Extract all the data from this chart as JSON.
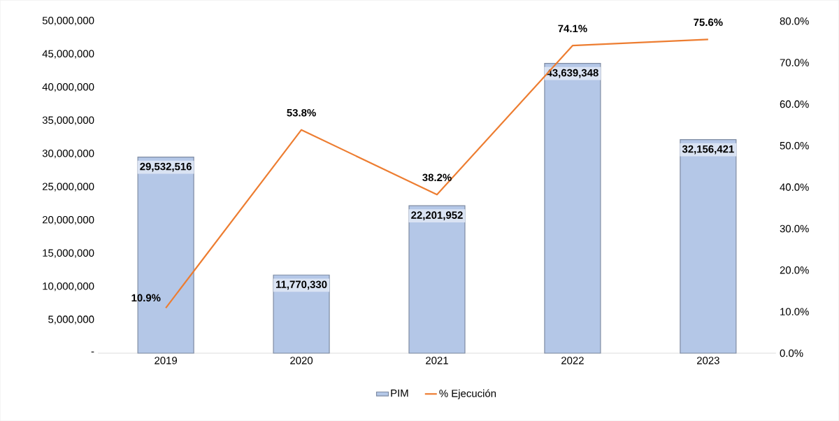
{
  "chart_data": {
    "type": "bar",
    "categories": [
      "2019",
      "2020",
      "2021",
      "2022",
      "2023"
    ],
    "series": [
      {
        "name": "PIM",
        "color": "#b4c7e7",
        "values": [
          29532516,
          11770330,
          22201952,
          43639348,
          32156421
        ],
        "value_labels": [
          "29,532,516",
          "11,770,330",
          "22,201,952",
          "43,639,348",
          "32,156,421"
        ]
      },
      {
        "name": "% Ejecución",
        "type": "line",
        "axis": "y2",
        "color": "#ed7d31",
        "values": [
          10.9,
          53.8,
          38.2,
          74.1,
          75.6
        ],
        "value_labels": [
          "10.9%",
          "53.8%",
          "38.2%",
          "74.1%",
          "75.6%"
        ]
      }
    ],
    "ylim": [
      0,
      50000000
    ],
    "yticks": [
      {
        "value": 0,
        "label": "-"
      },
      {
        "value": 5000000,
        "label": "5,000,000"
      },
      {
        "value": 10000000,
        "label": "10,000,000"
      },
      {
        "value": 15000000,
        "label": "15,000,000"
      },
      {
        "value": 20000000,
        "label": "20,000,000"
      },
      {
        "value": 25000000,
        "label": "25,000,000"
      },
      {
        "value": 30000000,
        "label": "30,000,000"
      },
      {
        "value": 35000000,
        "label": "35,000,000"
      },
      {
        "value": 40000000,
        "label": "40,000,000"
      },
      {
        "value": 45000000,
        "label": "45,000,000"
      },
      {
        "value": 50000000,
        "label": "50,000,000"
      }
    ],
    "y2lim": [
      0,
      80
    ],
    "y2ticks": [
      {
        "value": 0,
        "label": "0.0%"
      },
      {
        "value": 10,
        "label": "10.0%"
      },
      {
        "value": 20,
        "label": "20.0%"
      },
      {
        "value": 30,
        "label": "30.0%"
      },
      {
        "value": 40,
        "label": "40.0%"
      },
      {
        "value": 50,
        "label": "50.0%"
      },
      {
        "value": 60,
        "label": "60.0%"
      },
      {
        "value": 70,
        "label": "70.0%"
      },
      {
        "value": 80,
        "label": "80.0%"
      }
    ],
    "legend": "bottom"
  }
}
